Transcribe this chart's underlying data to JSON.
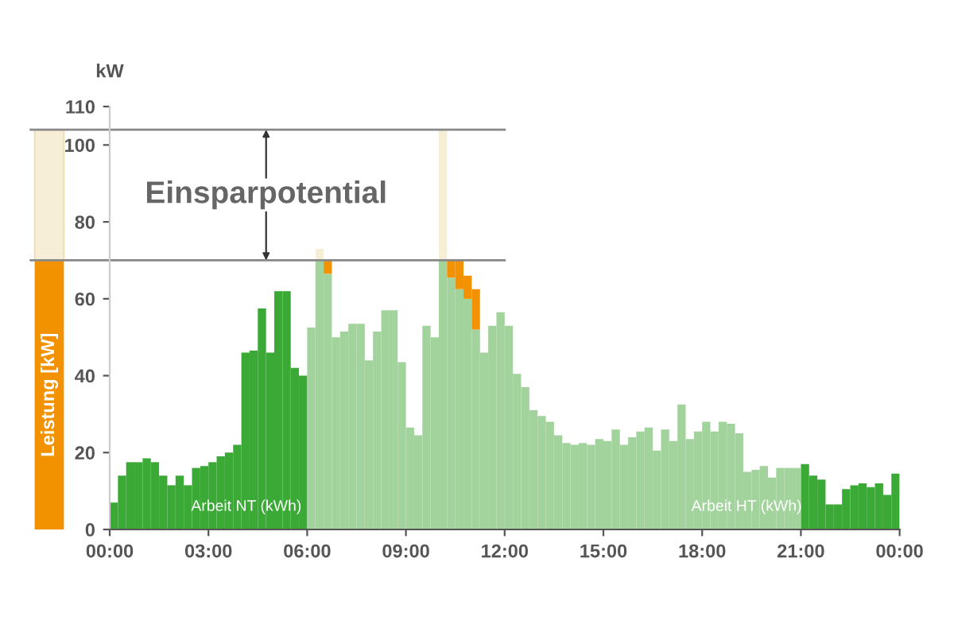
{
  "chart_data": {
    "type": "bar",
    "stacked": true,
    "ylabel": "Leistung [kW]",
    "x": [
      0.125,
      0.375,
      0.625,
      0.875,
      1.125,
      1.375,
      1.625,
      1.875,
      2.125,
      2.375,
      2.625,
      2.875,
      3.125,
      3.375,
      3.625,
      3.875,
      4.125,
      4.375,
      4.625,
      4.875,
      5.125,
      5.375,
      5.625,
      5.875,
      6.125,
      6.375,
      6.625,
      6.875,
      7.125,
      7.375,
      7.625,
      7.875,
      8.125,
      8.375,
      8.625,
      8.875,
      9.125,
      9.375,
      9.625,
      9.875,
      10.125,
      10.375,
      10.625,
      10.875,
      11.125,
      11.375,
      11.625,
      11.875,
      12.125,
      12.375,
      12.625,
      12.875,
      13.125,
      13.375,
      13.625,
      13.875,
      14.125,
      14.375,
      14.625,
      14.875,
      15.125,
      15.375,
      15.625,
      15.875,
      16.125,
      16.375,
      16.625,
      16.875,
      17.125,
      17.375,
      17.625,
      17.875,
      18.125,
      18.375,
      18.625,
      18.875,
      19.125,
      19.375,
      19.625,
      19.875,
      20.125,
      20.375,
      20.625,
      20.875,
      21.125,
      21.375,
      21.625,
      21.875,
      22.125,
      22.375,
      22.625,
      22.875,
      23.125,
      23.375,
      23.625,
      23.875
    ],
    "series": [
      {
        "color": "#3aa935",
        "values": [
          7,
          14,
          17.5,
          17.5,
          18.5,
          17.5,
          14,
          11.5,
          14,
          11.5,
          16,
          16.5,
          17.5,
          19,
          20,
          22,
          46,
          46.5,
          57.5,
          46,
          62,
          62,
          42,
          40,
          null,
          null,
          null,
          null,
          null,
          null,
          null,
          null,
          null,
          null,
          null,
          null,
          null,
          null,
          null,
          null,
          null,
          null,
          null,
          null,
          null,
          null,
          null,
          null,
          null,
          null,
          null,
          null,
          null,
          null,
          null,
          null,
          null,
          null,
          null,
          null,
          null,
          null,
          null,
          null,
          null,
          null,
          null,
          null,
          null,
          null,
          null,
          null,
          null,
          null,
          null,
          null,
          null,
          null,
          null,
          null,
          null,
          null,
          null,
          null,
          17,
          14,
          13,
          6.5,
          6.5,
          10.5,
          11.5,
          12,
          11,
          12,
          9,
          14.5
        ]
      },
      {
        "color": "#a3d39c",
        "values": [
          null,
          null,
          null,
          null,
          null,
          null,
          null,
          null,
          null,
          null,
          null,
          null,
          null,
          null,
          null,
          null,
          null,
          null,
          null,
          null,
          null,
          null,
          null,
          null,
          52.5,
          70,
          66.5,
          50,
          51.5,
          53.5,
          53.5,
          44,
          51.5,
          57,
          57,
          43.5,
          26.5,
          24.5,
          53,
          50,
          70,
          65.5,
          62.5,
          60,
          52,
          46,
          53,
          56.5,
          53,
          40.5,
          37,
          31,
          29.5,
          28,
          24.5,
          22.5,
          22,
          22.5,
          22,
          23.5,
          23,
          26,
          22,
          24,
          25.5,
          26.5,
          20.5,
          26,
          23,
          32.5,
          23.5,
          25.5,
          28,
          25.5,
          28,
          27.5,
          25,
          15,
          15.5,
          16.5,
          13.5,
          16,
          16,
          16,
          null,
          null,
          null,
          null,
          null,
          null,
          null,
          null,
          null,
          null,
          null,
          null
        ]
      },
      {
        "color": "#f39200",
        "values": [
          null,
          null,
          null,
          null,
          null,
          null,
          null,
          null,
          null,
          null,
          null,
          null,
          null,
          null,
          null,
          null,
          null,
          null,
          null,
          null,
          null,
          null,
          null,
          null,
          null,
          null,
          3.5,
          null,
          null,
          null,
          null,
          null,
          null,
          null,
          null,
          null,
          null,
          null,
          null,
          null,
          null,
          4.5,
          7.5,
          6,
          10.5,
          null,
          null,
          null,
          null,
          null,
          null,
          null,
          null,
          null,
          null,
          null,
          null,
          null,
          null,
          null,
          null,
          null,
          null,
          null,
          null,
          null,
          null,
          null,
          null,
          null,
          null,
          null,
          null,
          null,
          null,
          null,
          null,
          null,
          null,
          null,
          null,
          null,
          null,
          null,
          null,
          null,
          null,
          null,
          null,
          null,
          null,
          null,
          null,
          null,
          null,
          null
        ]
      },
      {
        "color": "#f6eed6",
        "values": [
          null,
          null,
          null,
          null,
          null,
          null,
          null,
          null,
          null,
          null,
          null,
          null,
          null,
          null,
          null,
          null,
          null,
          null,
          null,
          null,
          null,
          null,
          null,
          null,
          null,
          3,
          null,
          null,
          null,
          null,
          null,
          null,
          null,
          null,
          null,
          null,
          null,
          null,
          null,
          null,
          34,
          null,
          null,
          null,
          null,
          null,
          null,
          null,
          null,
          null,
          null,
          null,
          null,
          null,
          null,
          null,
          null,
          null,
          null,
          null,
          null,
          null,
          null,
          null,
          null,
          null,
          null,
          null,
          null,
          null,
          null,
          null,
          null,
          null,
          null,
          null,
          null,
          null,
          null,
          null,
          null,
          null,
          null,
          null,
          null,
          null,
          null,
          null,
          null,
          null,
          null,
          null,
          null,
          null,
          null,
          null
        ]
      }
    ],
    "xlim": [
      0,
      24
    ],
    "xticks": [
      {
        "value": 0,
        "label": "00:00"
      },
      {
        "value": 3,
        "label": "03:00"
      },
      {
        "value": 6,
        "label": "06:00"
      },
      {
        "value": 9,
        "label": "09:00"
      },
      {
        "value": 12,
        "label": "12:00"
      },
      {
        "value": 15,
        "label": "15:00"
      },
      {
        "value": 18,
        "label": "18:00"
      },
      {
        "value": 21,
        "label": "21:00"
      },
      {
        "value": 24,
        "label": "00:00"
      }
    ],
    "ylim": [
      0,
      110
    ],
    "yticks": [
      0,
      20,
      40,
      60,
      80,
      100,
      110
    ],
    "ref_lines": [
      {
        "axis": "y",
        "value": 70,
        "color": "#888888"
      },
      {
        "axis": "y",
        "value": 104,
        "color": "#888888"
      }
    ],
    "annotations": [
      "kW",
      "Einsparpotential",
      {
        "text": "Arbeit NT (kWh)",
        "x": 4.15,
        "y": 4
      },
      {
        "text": "Arbeit HT (kWh)",
        "x": 19.35,
        "y": 4
      }
    ],
    "legend": false
  }
}
